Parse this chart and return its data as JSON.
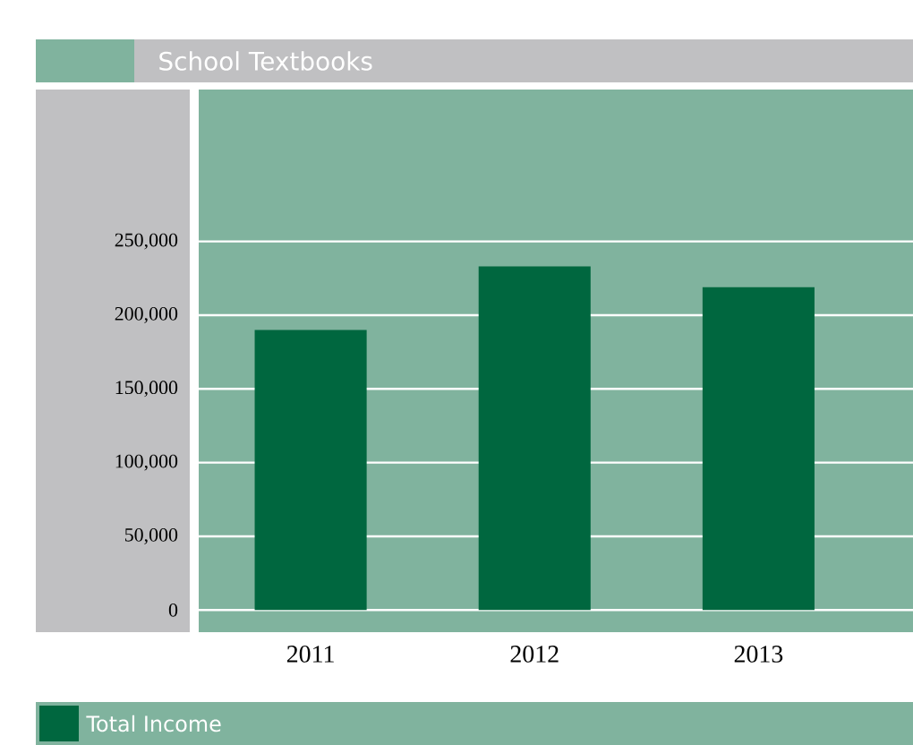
{
  "chart_data": {
    "type": "bar",
    "title": "School Textbooks",
    "categories": [
      "2011",
      "2012",
      "2013"
    ],
    "series": [
      {
        "name": "Total Income",
        "color": "#00673f",
        "values": [
          190000,
          233000,
          219000
        ]
      }
    ],
    "ylim": [
      -15000,
      353000
    ],
    "yticks": [
      {
        "value": 0,
        "label": "0"
      },
      {
        "value": 50000,
        "label": "50,000"
      },
      {
        "value": 100000,
        "label": "100,000"
      },
      {
        "value": 150000,
        "label": "150,000"
      },
      {
        "value": 200000,
        "label": "200,000"
      },
      {
        "value": 250000,
        "label": "250,000"
      }
    ],
    "grid": "y",
    "legend": "bottom"
  }
}
